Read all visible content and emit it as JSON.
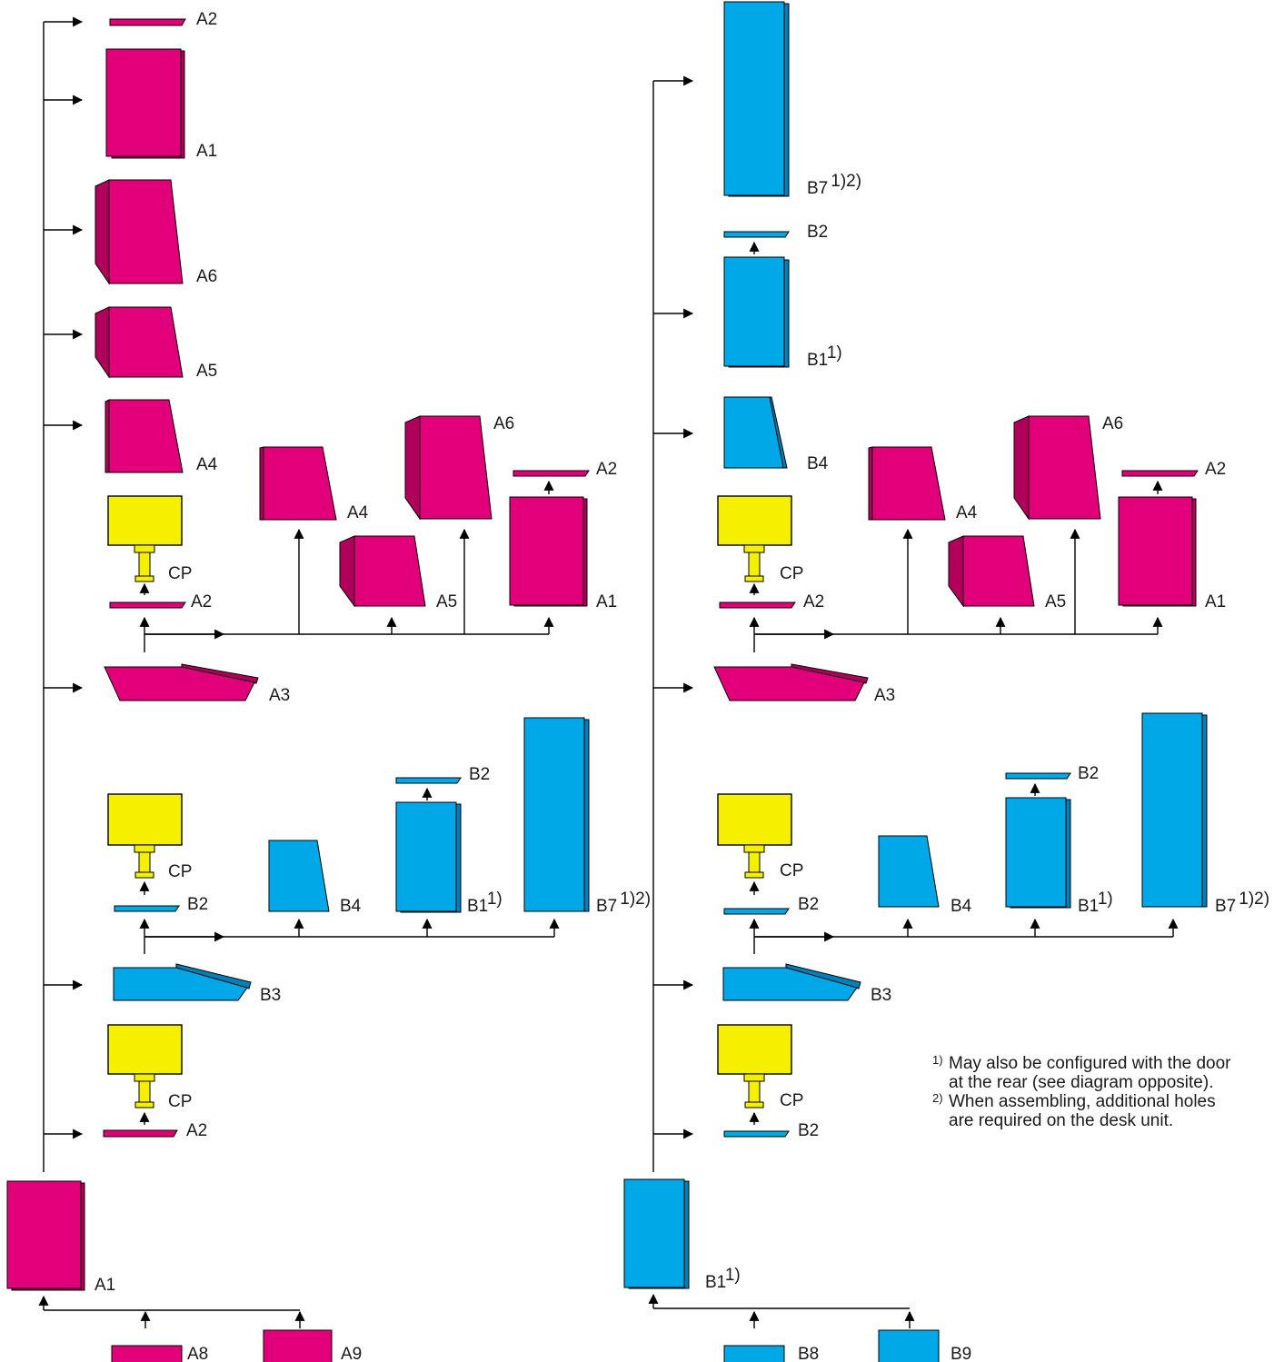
{
  "colors": {
    "magenta": "#e2007a",
    "magenta_side": "#b0005c",
    "cyan": "#00a8e8",
    "cyan_side": "#0080bb",
    "control_panel": "#f5f000",
    "line": "#000000"
  },
  "labels": {
    "a1": "A1",
    "a2": "A2",
    "a3": "A3",
    "a4": "A4",
    "a5": "A5",
    "a6": "A6",
    "a8": "A8",
    "a9": "A9",
    "b1": "B1",
    "b2": "B2",
    "b3": "B3",
    "b4": "B4",
    "b7": "B7",
    "b8": "B8",
    "b9": "B9",
    "cp": "CP"
  },
  "superscripts": {
    "note1": "1)",
    "note12": "1)2)"
  },
  "footnotes": [
    {
      "marker": "1)",
      "text": "May also be configured with the door at the rear (see diagram opposite)."
    },
    {
      "marker": "2)",
      "text": "When assembling, additional holes are required on the desk unit."
    }
  ]
}
